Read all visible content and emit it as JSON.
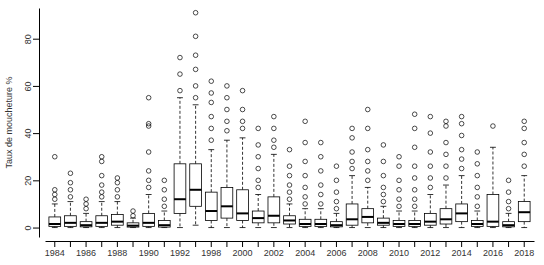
{
  "chart_data": {
    "type": "box",
    "y_label": "Taux de moucheture %",
    "categories": [
      "1984",
      null,
      "1986",
      null,
      "1988",
      null,
      "1990",
      null,
      "1992",
      null,
      "1998",
      null,
      "2000",
      null,
      "2002",
      null,
      "2004",
      null,
      "2006",
      null,
      "2008",
      null,
      "2010",
      null,
      "2012",
      null,
      "2014",
      null,
      "2016",
      null,
      "2018"
    ],
    "whisker_low": [
      0,
      0,
      0,
      0,
      0,
      0,
      0,
      0,
      0,
      1,
      0,
      0,
      0,
      0,
      0,
      0,
      0,
      0,
      0,
      0,
      0,
      0,
      0,
      0,
      0,
      0,
      0,
      0,
      0,
      0,
      0
    ],
    "q1": [
      0.5,
      0.5,
      0.3,
      0.5,
      1,
      0.2,
      0.5,
      0.2,
      6,
      9,
      3,
      4,
      3,
      2,
      2,
      1.5,
      0.5,
      0.5,
      0.3,
      1,
      2,
      1,
      0.5,
      0.5,
      1,
      1.5,
      2.5,
      0.5,
      0.5,
      0.3,
      2.5
    ],
    "median": [
      1.5,
      2,
      1,
      2,
      2.5,
      0.8,
      2,
      1,
      12,
      16,
      7,
      9,
      6,
      4,
      5,
      3,
      1.5,
      1.5,
      1,
      3.5,
      4.5,
      2,
      1.5,
      1.5,
      2.5,
      3.5,
      6,
      1.5,
      2.5,
      1,
      6.5
    ],
    "q3": [
      4.5,
      5,
      2.5,
      5,
      5.5,
      2,
      6,
      3,
      27,
      27,
      15,
      17,
      16,
      7,
      13,
      5,
      3.5,
      3.5,
      2.5,
      10,
      8,
      4,
      3,
      3,
      6,
      8,
      10,
      3,
      14,
      2.5,
      11
    ],
    "whisker_high": [
      10,
      11,
      6,
      11,
      11,
      4,
      14,
      7,
      55,
      52,
      33,
      37,
      38,
      14,
      31,
      10,
      8,
      8,
      6,
      22,
      17,
      9,
      7,
      7,
      14,
      18,
      22,
      7,
      34,
      6,
      22
    ],
    "outliers": [
      [
        12,
        14,
        16,
        30
      ],
      [
        13,
        16,
        19,
        23
      ],
      [
        8,
        10,
        12
      ],
      [
        13,
        15,
        18,
        22,
        28,
        30
      ],
      [
        13,
        16,
        19,
        21
      ],
      [
        5,
        7
      ],
      [
        17,
        20,
        24,
        32,
        43,
        44,
        55
      ],
      [
        9,
        12,
        16,
        20
      ],
      [
        58,
        65,
        72
      ],
      [
        55,
        60,
        67,
        73,
        81,
        91
      ],
      [
        37,
        42,
        47,
        53,
        57,
        62
      ],
      [
        41,
        45,
        50,
        55,
        60
      ],
      [
        42,
        45,
        50,
        58
      ],
      [
        17,
        20,
        25,
        30,
        35,
        42
      ],
      [
        34,
        37,
        42,
        47
      ],
      [
        12,
        15,
        18,
        22,
        26,
        33
      ],
      [
        10,
        13,
        17,
        22,
        28,
        36,
        45
      ],
      [
        10,
        14,
        18,
        24,
        30,
        36
      ],
      [
        8,
        11,
        15,
        20,
        26
      ],
      [
        25,
        28,
        32,
        38,
        42
      ],
      [
        20,
        24,
        28,
        33,
        42,
        50
      ],
      [
        11,
        14,
        17,
        22,
        28,
        35
      ],
      [
        9,
        12,
        16,
        20,
        26,
        30
      ],
      [
        9,
        12,
        16,
        21,
        26,
        34,
        42,
        48
      ],
      [
        17,
        21,
        26,
        32,
        40,
        47
      ],
      [
        21,
        26,
        31,
        36,
        43,
        45
      ],
      [
        25,
        29,
        33,
        39,
        44,
        47
      ],
      [
        9,
        13,
        17,
        22,
        27,
        32
      ],
      [
        43
      ],
      [
        8,
        11,
        15,
        20
      ],
      [
        26,
        31,
        36,
        42,
        45
      ]
    ],
    "color": "#000000",
    "ylim": [
      -4,
      93
    ],
    "yticks": [
      0,
      20,
      40,
      60,
      80
    ],
    "grid": false
  }
}
